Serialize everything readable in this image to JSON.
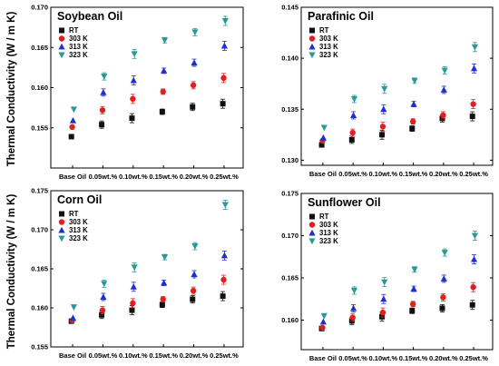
{
  "y_axis_label": "Thermal Conductivity (W / m K)",
  "chart_data": [
    {
      "type": "scatter",
      "title": "Soybean Oil",
      "categories": [
        "Base Oil",
        "0.05wt.%",
        "0.10wt.%",
        "0.15wt.%",
        "0.20wt.%",
        "0.25wt.%"
      ],
      "ylim": [
        0.15,
        0.17
      ],
      "yticks": [
        0.155,
        0.16,
        0.165,
        0.17
      ],
      "ytick_labels": [
        "0.155",
        "0.160",
        "0.165",
        "0.170"
      ],
      "legend_position": "top-left",
      "series": [
        {
          "name": "RT",
          "color": "#111111",
          "marker": "square",
          "values": [
            0.1539,
            0.1554,
            0.1562,
            0.157,
            0.1576,
            0.158
          ]
        },
        {
          "name": "303 K",
          "color": "#e02020",
          "marker": "circle",
          "values": [
            0.1551,
            0.1572,
            0.1586,
            0.1595,
            0.1603,
            0.1612
          ]
        },
        {
          "name": "313 K",
          "color": "#1f2fcf",
          "marker": "triangle-up",
          "values": [
            0.1559,
            0.1594,
            0.1609,
            0.1621,
            0.1631,
            0.1652
          ]
        },
        {
          "name": "323 K",
          "color": "#2a9a96",
          "marker": "triangle-down",
          "values": [
            0.1573,
            0.1614,
            0.1642,
            0.1659,
            0.1669,
            0.1683
          ]
        }
      ]
    },
    {
      "type": "scatter",
      "title": "Parafinic Oil",
      "categories": [
        "Base Oil",
        "0.05wt.%",
        "0.10wt.%",
        "0.15wt.%",
        "0.20wt.%",
        "0.25wt.%"
      ],
      "ylim": [
        0.1295,
        0.145
      ],
      "yticks": [
        0.13,
        0.135,
        0.14,
        0.145
      ],
      "ytick_labels": [
        "0.130",
        "0.135",
        "0.140",
        "0.145"
      ],
      "legend_position": "top-left",
      "series": [
        {
          "name": "RT",
          "color": "#111111",
          "marker": "square",
          "values": [
            0.1315,
            0.132,
            0.1325,
            0.1331,
            0.1341,
            0.1343
          ]
        },
        {
          "name": "303 K",
          "color": "#e02020",
          "marker": "circle",
          "values": [
            0.1319,
            0.1327,
            0.1333,
            0.1338,
            0.1344,
            0.1355
          ]
        },
        {
          "name": "313 K",
          "color": "#1f2fcf",
          "marker": "triangle-up",
          "values": [
            0.1322,
            0.1344,
            0.135,
            0.1355,
            0.1369,
            0.139
          ]
        },
        {
          "name": "323 K",
          "color": "#2a9a96",
          "marker": "triangle-down",
          "values": [
            0.1332,
            0.136,
            0.137,
            0.1378,
            0.1388,
            0.1411
          ]
        }
      ]
    },
    {
      "type": "scatter",
      "title": "Corn Oil",
      "categories": [
        "Base Oil",
        "0.05wt.%",
        "0.10wt.%",
        "0.15wt.%",
        "0.20wt.%",
        "0.25wt.%"
      ],
      "ylim": [
        0.155,
        0.175
      ],
      "yticks": [
        0.155,
        0.16,
        0.165,
        0.17,
        0.175
      ],
      "ytick_labels": [
        "0.155",
        "0.160",
        "0.165",
        "0.170",
        "0.175"
      ],
      "legend_position": "top-left",
      "series": [
        {
          "name": "RT",
          "color": "#111111",
          "marker": "square",
          "values": [
            0.1583,
            0.1591,
            0.1597,
            0.1604,
            0.1611,
            0.1615
          ]
        },
        {
          "name": "303 K",
          "color": "#e02020",
          "marker": "circle",
          "values": [
            0.1584,
            0.1597,
            0.1606,
            0.1611,
            0.1622,
            0.1636
          ]
        },
        {
          "name": "313 K",
          "color": "#1f2fcf",
          "marker": "triangle-up",
          "values": [
            0.1587,
            0.1614,
            0.1627,
            0.1632,
            0.1643,
            0.1667
          ]
        },
        {
          "name": "323 K",
          "color": "#2a9a96",
          "marker": "triangle-down",
          "values": [
            0.1601,
            0.1631,
            0.1652,
            0.1665,
            0.1679,
            0.1732
          ]
        }
      ]
    },
    {
      "type": "scatter",
      "title": "Sunflower Oil",
      "categories": [
        "Base Oil",
        "0.05wt.%",
        "0.10wt.%",
        "0.15wt.%",
        "0.20wt.%",
        "0.25wt.%"
      ],
      "ylim": [
        0.1565,
        0.175
      ],
      "yticks": [
        0.16,
        0.165,
        0.17,
        0.175
      ],
      "ytick_labels": [
        "0.160",
        "0.165",
        "0.170",
        "0.175"
      ],
      "legend_position": "top-left",
      "series": [
        {
          "name": "RT",
          "color": "#111111",
          "marker": "square",
          "values": [
            0.159,
            0.1599,
            0.1604,
            0.1611,
            0.1614,
            0.1618
          ]
        },
        {
          "name": "303 K",
          "color": "#e02020",
          "marker": "circle",
          "values": [
            0.1591,
            0.1603,
            0.1609,
            0.1619,
            0.1627,
            0.1639
          ]
        },
        {
          "name": "313 K",
          "color": "#1f2fcf",
          "marker": "triangle-up",
          "values": [
            0.1598,
            0.1614,
            0.1625,
            0.1637,
            0.1649,
            0.1672
          ]
        },
        {
          "name": "323 K",
          "color": "#2a9a96",
          "marker": "triangle-down",
          "values": [
            0.1605,
            0.1635,
            0.1645,
            0.166,
            0.168,
            0.17
          ]
        }
      ]
    }
  ]
}
